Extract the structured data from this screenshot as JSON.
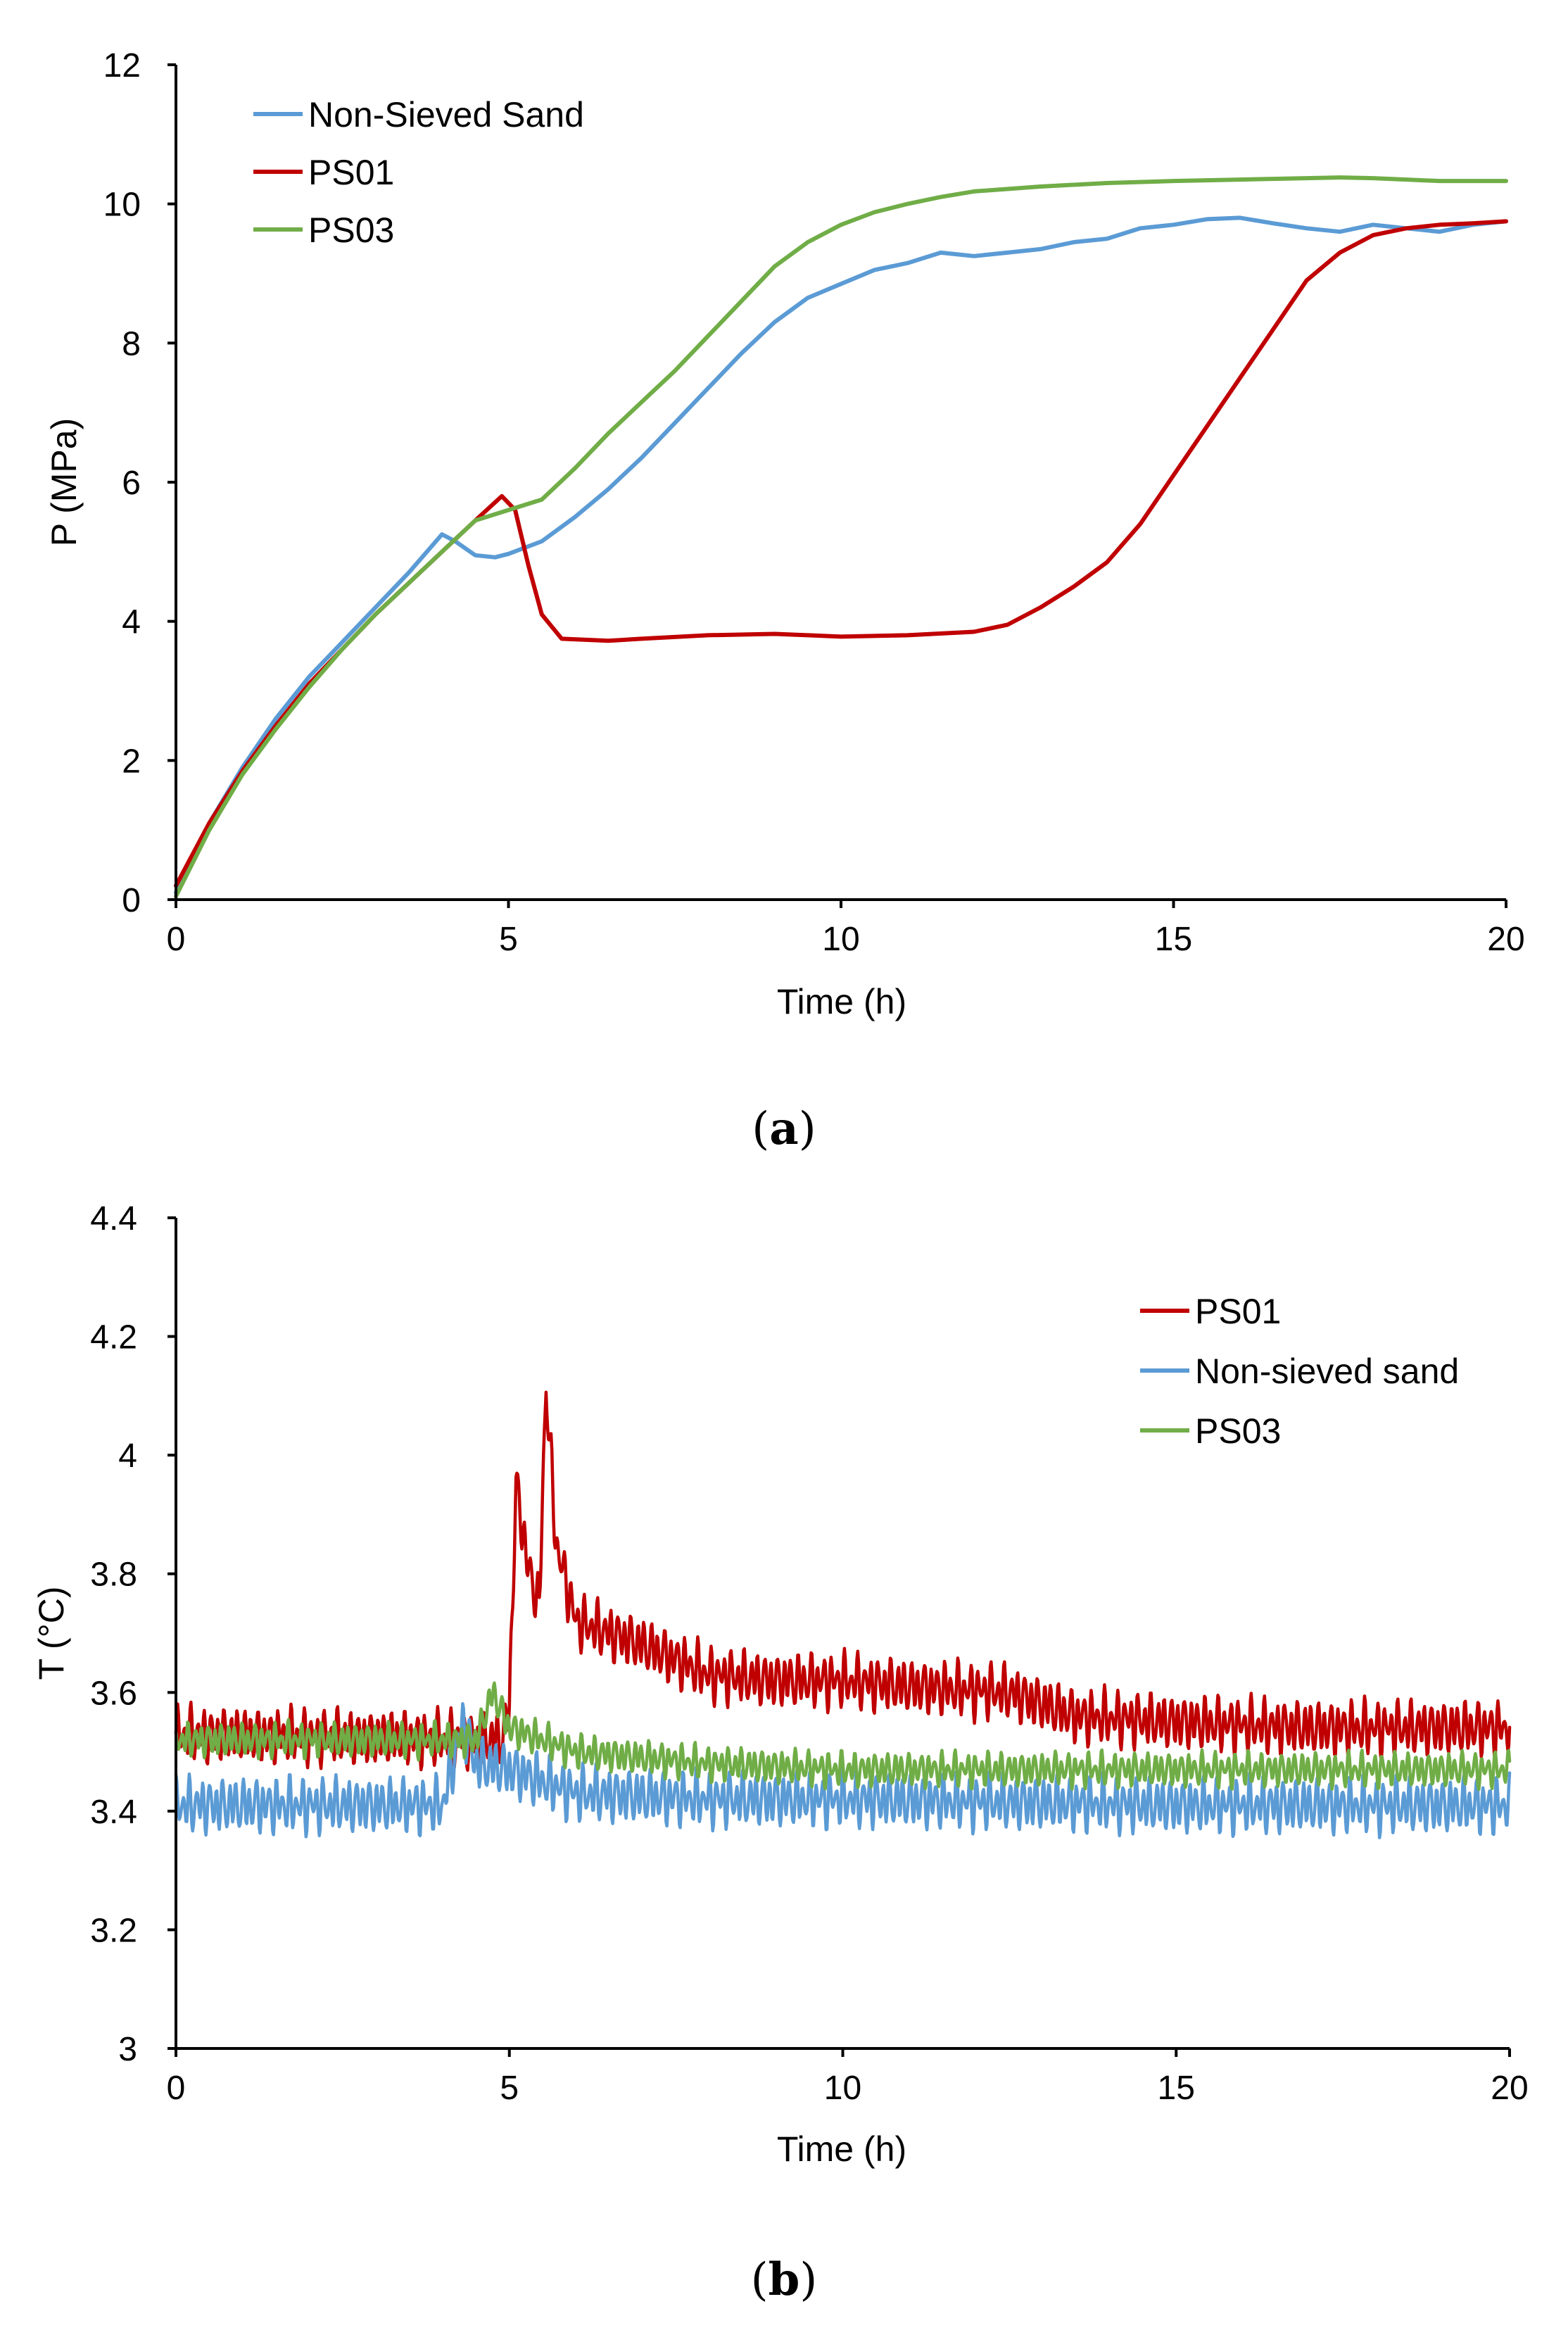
{
  "colors": {
    "red": "#C00000",
    "blue": "#5B9BD5",
    "green": "#70AD47"
  },
  "chart_data": [
    {
      "type": "line",
      "panel": "a",
      "caption": "a",
      "xlabel": "Time (h)",
      "ylabel": "P (MPa)",
      "xlim": [
        0,
        20
      ],
      "ylim": [
        0,
        12
      ],
      "xticks": [
        "0",
        "5",
        "10",
        "15",
        "20"
      ],
      "yticks": [
        "0",
        "2",
        "4",
        "6",
        "8",
        "10",
        "12"
      ],
      "legend_position": "top-left",
      "series": [
        {
          "name": "Non-Sieved Sand",
          "color": "#5B9BD5",
          "points": [
            [
              0,
              0.1
            ],
            [
              0.5,
              1.1
            ],
            [
              1,
              1.9
            ],
            [
              1.5,
              2.6
            ],
            [
              2,
              3.2
            ],
            [
              2.5,
              3.7
            ],
            [
              3,
              4.2
            ],
            [
              3.5,
              4.7
            ],
            [
              4,
              5.25
            ],
            [
              4.2,
              5.15
            ],
            [
              4.5,
              4.95
            ],
            [
              4.8,
              4.92
            ],
            [
              5,
              4.97
            ],
            [
              5.5,
              5.15
            ],
            [
              6,
              5.5
            ],
            [
              6.5,
              5.9
            ],
            [
              7,
              6.35
            ],
            [
              7.5,
              6.85
            ],
            [
              8,
              7.35
            ],
            [
              8.5,
              7.85
            ],
            [
              9,
              8.3
            ],
            [
              9.5,
              8.65
            ],
            [
              10,
              8.85
            ],
            [
              10.5,
              9.05
            ],
            [
              11,
              9.15
            ],
            [
              11.5,
              9.3
            ],
            [
              12,
              9.25
            ],
            [
              12.5,
              9.3
            ],
            [
              13,
              9.35
            ],
            [
              13.5,
              9.45
            ],
            [
              14,
              9.5
            ],
            [
              14.5,
              9.65
            ],
            [
              15,
              9.7
            ],
            [
              15.5,
              9.78
            ],
            [
              16,
              9.8
            ],
            [
              16.5,
              9.72
            ],
            [
              17,
              9.65
            ],
            [
              17.5,
              9.6
            ],
            [
              18,
              9.7
            ],
            [
              18.5,
              9.65
            ],
            [
              19,
              9.6
            ],
            [
              19.5,
              9.7
            ],
            [
              20,
              9.75
            ]
          ]
        },
        {
          "name": "PS01",
          "color": "#C00000",
          "points": [
            [
              0,
              0.2
            ],
            [
              0.5,
              1.1
            ],
            [
              1,
              1.85
            ],
            [
              1.5,
              2.5
            ],
            [
              2,
              3.1
            ],
            [
              2.5,
              3.6
            ],
            [
              3,
              4.1
            ],
            [
              3.5,
              4.55
            ],
            [
              4,
              5.0
            ],
            [
              4.5,
              5.45
            ],
            [
              4.9,
              5.8
            ],
            [
              5.1,
              5.6
            ],
            [
              5.3,
              4.8
            ],
            [
              5.5,
              4.1
            ],
            [
              5.8,
              3.75
            ],
            [
              6.5,
              3.72
            ],
            [
              7,
              3.75
            ],
            [
              8,
              3.8
            ],
            [
              9,
              3.82
            ],
            [
              9.5,
              3.8
            ],
            [
              10,
              3.78
            ],
            [
              11,
              3.8
            ],
            [
              12,
              3.85
            ],
            [
              12.5,
              3.95
            ],
            [
              13,
              4.2
            ],
            [
              13.5,
              4.5
            ],
            [
              14,
              4.85
            ],
            [
              14.5,
              5.4
            ],
            [
              15,
              6.1
            ],
            [
              15.5,
              6.8
            ],
            [
              16,
              7.5
            ],
            [
              16.5,
              8.2
            ],
            [
              17,
              8.9
            ],
            [
              17.5,
              9.3
            ],
            [
              18,
              9.55
            ],
            [
              18.5,
              9.65
            ],
            [
              19,
              9.7
            ],
            [
              19.5,
              9.72
            ],
            [
              20,
              9.75
            ]
          ]
        },
        {
          "name": "PS03",
          "color": "#70AD47",
          "points": [
            [
              0,
              0.05
            ],
            [
              0.5,
              1.0
            ],
            [
              1,
              1.8
            ],
            [
              1.5,
              2.45
            ],
            [
              2,
              3.05
            ],
            [
              2.5,
              3.6
            ],
            [
              3,
              4.1
            ],
            [
              3.5,
              4.55
            ],
            [
              4,
              5.0
            ],
            [
              4.5,
              5.45
            ],
            [
              5,
              5.6
            ],
            [
              5.5,
              5.75
            ],
            [
              6,
              6.2
            ],
            [
              6.5,
              6.7
            ],
            [
              7,
              7.15
            ],
            [
              7.5,
              7.6
            ],
            [
              8,
              8.1
            ],
            [
              8.5,
              8.6
            ],
            [
              9,
              9.1
            ],
            [
              9.5,
              9.45
            ],
            [
              10,
              9.7
            ],
            [
              10.5,
              9.88
            ],
            [
              11,
              10.0
            ],
            [
              11.5,
              10.1
            ],
            [
              12,
              10.18
            ],
            [
              13,
              10.25
            ],
            [
              14,
              10.3
            ],
            [
              15,
              10.33
            ],
            [
              16,
              10.35
            ],
            [
              17,
              10.37
            ],
            [
              17.5,
              10.38
            ],
            [
              18,
              10.37
            ],
            [
              18.5,
              10.35
            ],
            [
              19,
              10.33
            ],
            [
              20,
              10.33
            ]
          ]
        }
      ]
    },
    {
      "type": "line",
      "panel": "b",
      "caption": "b",
      "xlabel": "Time (h)",
      "ylabel": "T (°C)",
      "xlim": [
        0,
        20
      ],
      "ylim": [
        3,
        4.4
      ],
      "xticks": [
        "0",
        "5",
        "10",
        "15",
        "20"
      ],
      "yticks": [
        "3",
        "3.2",
        "3.4",
        "3.6",
        "3.8",
        "4",
        "4.2",
        "4.4"
      ],
      "legend_position": "top-right",
      "series": [
        {
          "name": "PS01",
          "color": "#C00000",
          "baseline": [
            [
              0,
              3.53
            ],
            [
              4.9,
              3.52
            ],
            [
              5.0,
              3.58
            ],
            [
              5.1,
              3.95
            ],
            [
              5.3,
              3.8
            ],
            [
              5.45,
              3.75
            ],
            [
              5.55,
              4.12
            ],
            [
              5.7,
              3.85
            ],
            [
              6,
              3.72
            ],
            [
              7,
              3.68
            ],
            [
              8,
              3.63
            ],
            [
              9,
              3.62
            ],
            [
              10,
              3.62
            ],
            [
              11,
              3.61
            ],
            [
              12.5,
              3.6
            ],
            [
              13.5,
              3.56
            ],
            [
              15,
              3.55
            ],
            [
              17,
              3.54
            ],
            [
              20,
              3.54
            ]
          ],
          "noise_amplitude": 0.04,
          "period_h": 0.1
        },
        {
          "name": "Non-sieved sand",
          "color": "#5B9BD5",
          "baseline": [
            [
              0,
              3.41
            ],
            [
              4.0,
              3.41
            ],
            [
              4.3,
              3.55
            ],
            [
              4.5,
              3.48
            ],
            [
              5.0,
              3.47
            ],
            [
              6,
              3.43
            ],
            [
              8,
              3.42
            ],
            [
              10,
              3.42
            ],
            [
              15,
              3.41
            ],
            [
              20,
              3.41
            ]
          ],
          "noise_amplitude": 0.04,
          "period_h": 0.1
        },
        {
          "name": "PS03",
          "color": "#70AD47",
          "baseline": [
            [
              0,
              3.52
            ],
            [
              4.5,
              3.52
            ],
            [
              4.75,
              3.6
            ],
            [
              5,
              3.54
            ],
            [
              6,
              3.5
            ],
            [
              8,
              3.48
            ],
            [
              10,
              3.47
            ],
            [
              15,
              3.47
            ],
            [
              20,
              3.47
            ]
          ],
          "noise_amplitude": 0.025,
          "period_h": 0.1
        }
      ]
    }
  ]
}
